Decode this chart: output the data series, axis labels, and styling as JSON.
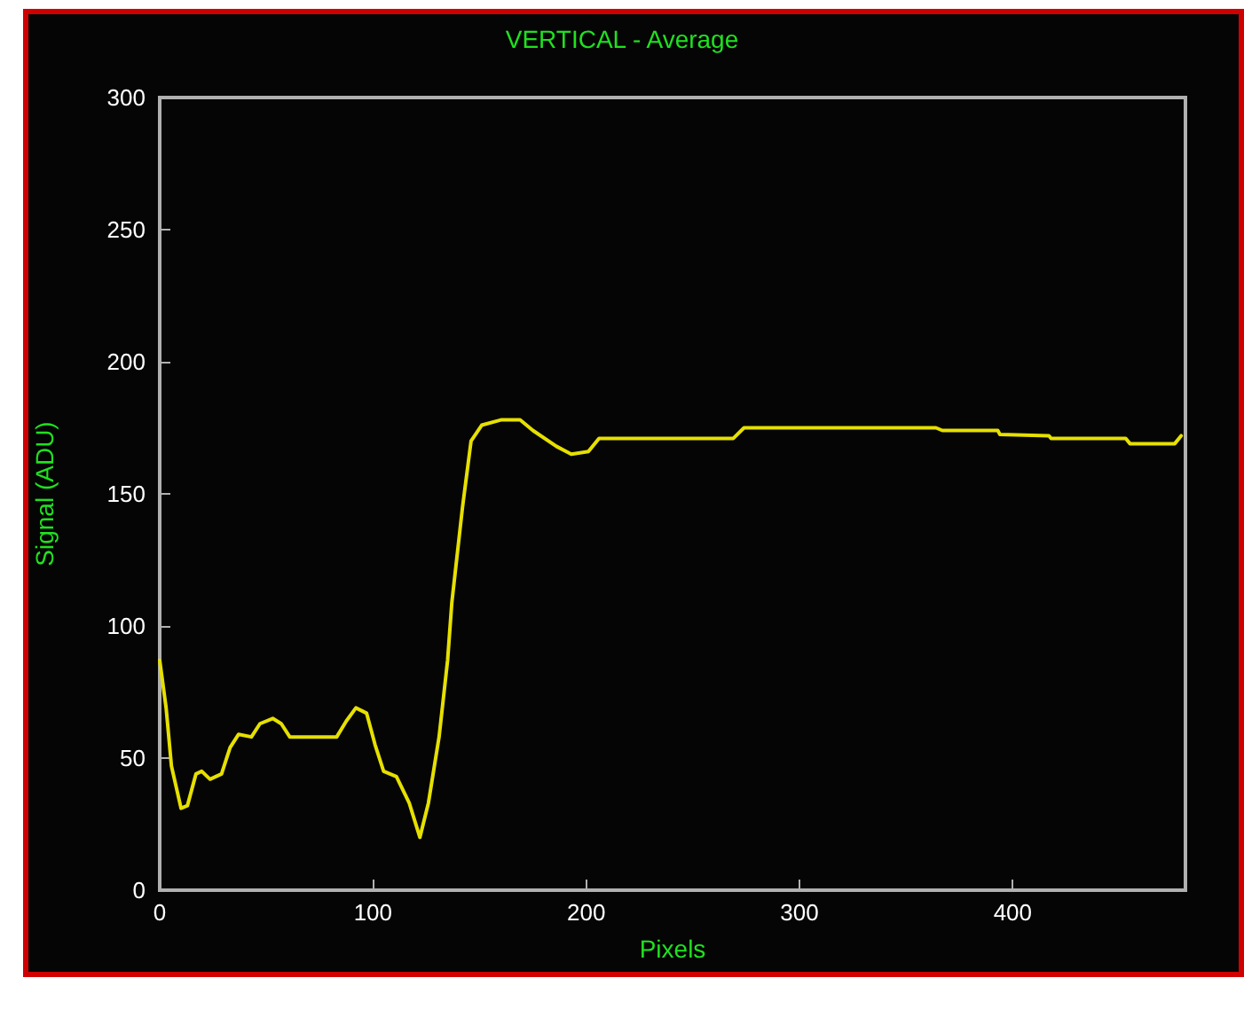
{
  "chart_data": {
    "type": "line",
    "title": "VERTICAL - Average",
    "xlabel": "Pixels",
    "ylabel": "Signal (ADU)",
    "xlim": [
      0,
      481
    ],
    "xticks": [
      0,
      100,
      200,
      300,
      400
    ],
    "ylim": [
      0,
      300
    ],
    "yticks": [
      0,
      50,
      100,
      150,
      200,
      250,
      300
    ],
    "grid": false,
    "marker": "none",
    "line_style": "solid",
    "series": [
      {
        "color": "#e6e000",
        "x": [
          0,
          3,
          5.5,
          10,
          13,
          17,
          19.7,
          23.6,
          29,
          33,
          37,
          43,
          47,
          53,
          57,
          61,
          83,
          87.5,
          92,
          97,
          101,
          105,
          111,
          117,
          122,
          126,
          131,
          135,
          137,
          142,
          146,
          151,
          160,
          169,
          175,
          186,
          193,
          201,
          206,
          269,
          274,
          300,
          364,
          367,
          393,
          394,
          417,
          418,
          453,
          455,
          476,
          479
        ],
        "values": [
          87,
          69,
          47,
          31,
          32,
          44,
          45,
          42,
          44,
          54,
          59,
          58,
          63,
          65,
          63,
          58,
          58,
          64,
          69,
          67,
          55,
          45,
          43,
          33,
          20,
          33,
          58,
          87,
          109,
          145,
          170,
          176,
          178,
          178,
          174,
          168,
          165,
          166,
          171,
          171,
          175,
          175,
          175,
          174,
          174,
          172.5,
          172,
          171,
          171,
          169,
          169,
          172
        ]
      }
    ]
  }
}
